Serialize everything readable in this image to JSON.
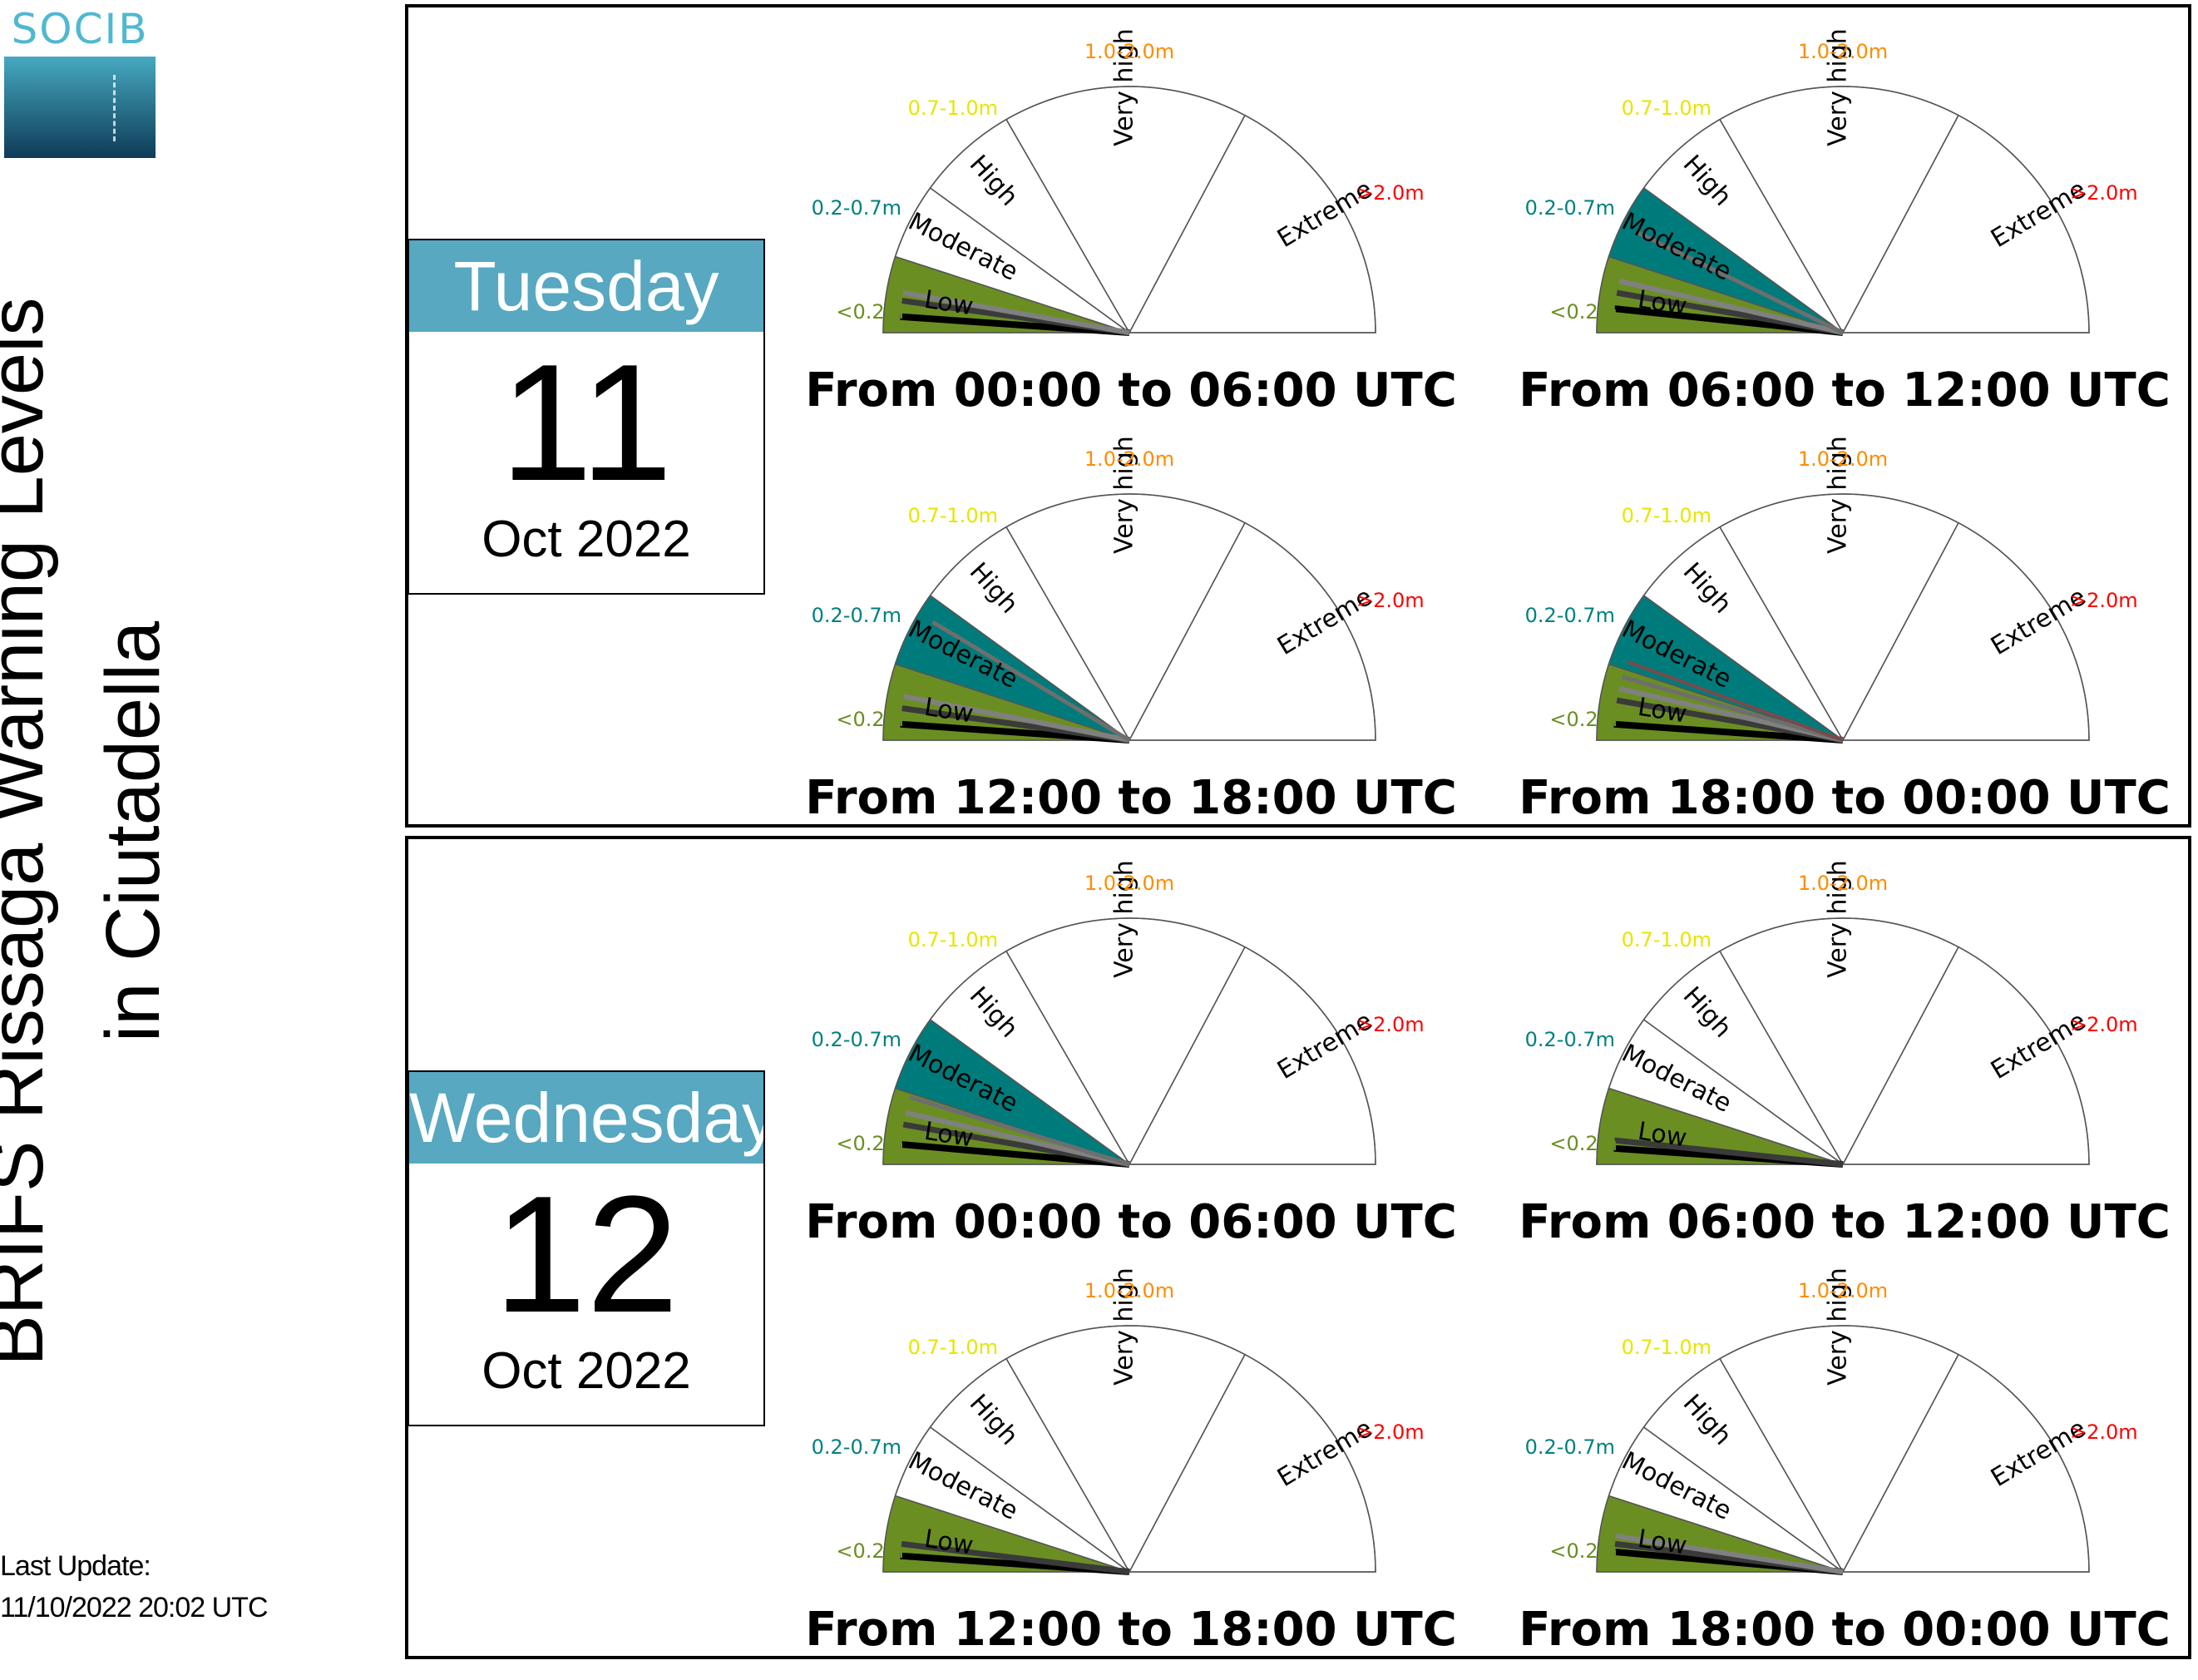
{
  "logo": {
    "text": "SOCIB"
  },
  "title": {
    "line1": "BRIFS Rissaga Warning Levels",
    "line2": "in Ciutadella"
  },
  "last_update": {
    "label": "Last Update:",
    "value": "11/10/2022 20:02 UTC"
  },
  "colors": {
    "low": "#6b8e23",
    "moderate": "#007b7b",
    "label_low": "#6b8e23",
    "label_moderate": "#008080",
    "label_high": "#e6e600",
    "label_very_high": "#ff8c00",
    "label_extreme": "#ff0000",
    "day_header": "#57a8c0"
  },
  "days": [
    {
      "weekday": "Tuesday",
      "day": "11",
      "month_year": "Oct 2022"
    },
    {
      "weekday": "Wednesday",
      "day": "12",
      "month_year": "Oct 2022"
    }
  ],
  "chart_data": {
    "type": "gauge",
    "levels": [
      "Low",
      "Moderate",
      "High",
      "Very high",
      "Extreme"
    ],
    "thresholds": [
      "<0.2m",
      "0.2-0.7m",
      "0.7-1.0m",
      "1.0-2.0m",
      ">2.0m"
    ],
    "gauges": [
      {
        "day": "11",
        "period": "From 00:00 to 06:00 UTC",
        "filled_level": "Low",
        "needles": [
          4,
          8,
          10
        ]
      },
      {
        "day": "11",
        "period": "From 06:00 to 12:00 UTC",
        "filled_level": "Moderate",
        "needles": [
          6,
          10,
          13,
          26
        ]
      },
      {
        "day": "11",
        "period": "From 12:00 to 18:00 UTC",
        "filled_level": "Moderate",
        "needles": [
          4,
          8,
          11,
          31
        ]
      },
      {
        "day": "11",
        "period": "From 18:00 to 00:00 UTC",
        "filled_level": "Moderate",
        "needles": [
          4,
          10,
          13,
          16,
          20
        ]
      },
      {
        "day": "12",
        "period": "From 00:00 to 06:00 UTC",
        "filled_level": "Moderate",
        "needles": [
          5,
          10,
          13,
          17
        ]
      },
      {
        "day": "12",
        "period": "From 06:00 to 12:00 UTC",
        "filled_level": "Low",
        "needles": [
          4,
          6
        ]
      },
      {
        "day": "12",
        "period": "From 12:00 to 18:00 UTC",
        "filled_level": "Low",
        "needles": [
          4,
          7
        ]
      },
      {
        "day": "12",
        "period": "From 18:00 to 00:00 UTC",
        "filled_level": "Low",
        "needles": [
          5,
          7,
          9
        ]
      }
    ]
  }
}
